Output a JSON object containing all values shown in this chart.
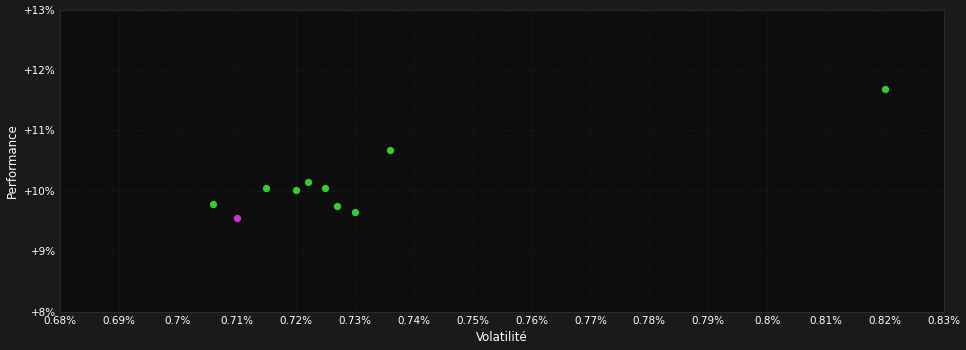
{
  "background_color": "#1a1a1a",
  "plot_bg_color": "#0d0d0d",
  "text_color": "#ffffff",
  "xlabel": "Volatilité",
  "ylabel": "Performance",
  "xlim": [
    0.0068,
    0.0083
  ],
  "ylim": [
    0.08,
    0.13
  ],
  "xtick_vals": [
    0.0068,
    0.0069,
    0.007,
    0.0071,
    0.0072,
    0.0073,
    0.0074,
    0.0075,
    0.0076,
    0.0077,
    0.0078,
    0.0079,
    0.008,
    0.0081,
    0.0082,
    0.0083
  ],
  "ytick_vals": [
    0.08,
    0.09,
    0.1,
    0.11,
    0.12,
    0.13
  ],
  "green_points": [
    [
      0.00706,
      0.0978
    ],
    [
      0.00715,
      0.1005
    ],
    [
      0.0072,
      0.1002
    ],
    [
      0.00722,
      0.1014
    ],
    [
      0.00725,
      0.1005
    ],
    [
      0.00727,
      0.0975
    ],
    [
      0.0073,
      0.0965
    ],
    [
      0.00736,
      0.1068
    ],
    [
      0.0082,
      0.1168
    ]
  ],
  "magenta_points": [
    [
      0.0071,
      0.0955
    ]
  ],
  "green_color": "#33cc33",
  "magenta_color": "#cc33cc",
  "dot_size": 18,
  "grid_major_color": "#2a2a2a",
  "grid_minor_color": "#222222",
  "spine_color": "#333333"
}
